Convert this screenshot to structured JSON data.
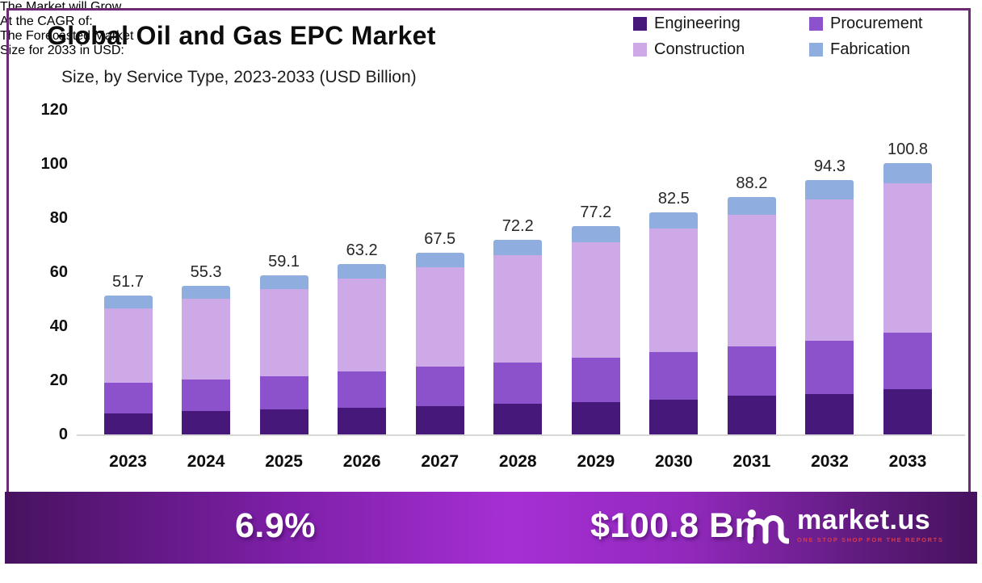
{
  "header": {
    "title": "Global Oil and Gas EPC Market",
    "subtitle": "Size, by Service Type, 2023-2033 (USD Billion)"
  },
  "legend": {
    "position": "top-right",
    "items": [
      {
        "label": "Engineering",
        "color": "#45187a"
      },
      {
        "label": "Procurement",
        "color": "#8b52cc"
      },
      {
        "label": "Construction",
        "color": "#cda9e8"
      },
      {
        "label": "Fabrication",
        "color": "#8fadde"
      }
    ]
  },
  "chart_data": {
    "type": "bar",
    "stacked": true,
    "title": "Global Oil and Gas EPC Market Size, by Service Type, 2023-2033 (USD Billion)",
    "xlabel": "",
    "ylabel": "USD Billion",
    "ylim": [
      0,
      120
    ],
    "yticks": [
      0,
      20,
      40,
      60,
      80,
      100,
      120
    ],
    "grid": false,
    "legend_position": "top-right",
    "categories": [
      "2023",
      "2024",
      "2025",
      "2026",
      "2027",
      "2028",
      "2029",
      "2030",
      "2031",
      "2032",
      "2033"
    ],
    "series": [
      {
        "name": "Engineering",
        "color": "#45187a",
        "values": [
          8.0,
          8.8,
          9.5,
          10.1,
          10.7,
          11.5,
          12.1,
          13.0,
          14.5,
          15.2,
          17.0
        ]
      },
      {
        "name": "Procurement",
        "color": "#8b52cc",
        "values": [
          11.3,
          11.8,
          12.3,
          13.5,
          14.6,
          15.2,
          16.6,
          17.7,
          18.2,
          19.7,
          20.9
        ]
      },
      {
        "name": "Construction",
        "color": "#cda9e8",
        "values": [
          27.6,
          29.8,
          32.3,
          34.4,
          36.8,
          39.9,
          42.7,
          45.7,
          48.9,
          52.3,
          55.4
        ]
      },
      {
        "name": "Fabrication",
        "color": "#8fadde",
        "values": [
          4.8,
          4.9,
          5.0,
          5.2,
          5.4,
          5.6,
          5.8,
          6.1,
          6.6,
          7.1,
          7.5
        ]
      }
    ],
    "totals": [
      51.7,
      55.3,
      59.1,
      63.2,
      67.5,
      72.2,
      77.2,
      82.5,
      88.2,
      94.3,
      100.8
    ]
  },
  "footer": {
    "cagr_label_line1": "The Market will Grow",
    "cagr_label_line2": "At the CAGR of:",
    "cagr_value": "6.9%",
    "forecast_label_line1": "The Forecasted Market",
    "forecast_label_line2": "Size for 2033 in USD:",
    "forecast_value": "$100.8 Bn",
    "brand": {
      "name": "market.us",
      "tagline": "ONE STOP SHOP FOR THE REPORTS"
    }
  },
  "colors": {
    "border": "#6b2a72",
    "axis_line": "#d8d8d8",
    "footer_gradient_dark": "#47125f",
    "footer_gradient_bright": "#a62fd4",
    "tagline_red": "#d93a4e"
  }
}
